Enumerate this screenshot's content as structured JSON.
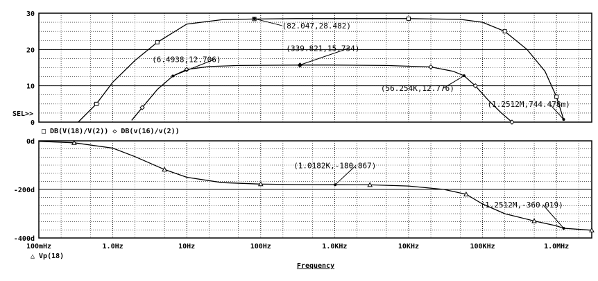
{
  "chart_data": [
    {
      "type": "line",
      "x_scale": "log",
      "xlim": [
        0.1,
        3000000
      ],
      "ylim": [
        0,
        30
      ],
      "y_ticks": [
        0,
        10,
        20,
        30
      ],
      "y_tick_labels": [
        "0",
        "10",
        "20",
        "30"
      ],
      "cursor_label": "SEL>>",
      "legend_text": "□ DB(V(18)/V(2))  ◇ DB(v(16)/v(2))",
      "series": [
        {
          "name": "DB(V(18)/V(2))",
          "marker": "square",
          "x": [
            0.34,
            0.6,
            1.0,
            2.0,
            4.0,
            10,
            30,
            82,
            300,
            1000,
            10000,
            50000,
            100000,
            200000,
            400000,
            700000,
            1000000,
            1250000
          ],
          "y": [
            0,
            5,
            11,
            17,
            22,
            27,
            28.2,
            28.4,
            28.5,
            28.5,
            28.5,
            28.3,
            27.5,
            25,
            20,
            14,
            7,
            0.7
          ]
        },
        {
          "name": "DB(v(16)/v(2))",
          "marker": "diamond",
          "x": [
            1.8,
            2.5,
            4.0,
            6.5,
            10,
            20,
            50,
            340,
            1000,
            5000,
            20000,
            40000,
            56000,
            80000,
            120000,
            180000,
            250000
          ],
          "y": [
            0.5,
            4,
            9,
            12.7,
            14.5,
            15.3,
            15.6,
            15.7,
            15.7,
            15.6,
            15.2,
            14,
            12.8,
            10,
            6,
            2.5,
            0
          ]
        }
      ],
      "annotations": [
        {
          "text": "(82.047,28.482)",
          "x": 82.047,
          "y": 28.482
        },
        {
          "text": "(1.2512M,744.478m)",
          "x": 1251200,
          "y": 0.744
        },
        {
          "text": "(6.4938,12.706)",
          "x": 6.4938,
          "y": 12.706
        },
        {
          "text": "(339.821,15.734)",
          "x": 339.821,
          "y": 15.734
        },
        {
          "text": "(56.254K,12.776)",
          "x": 56254,
          "y": 12.776
        }
      ]
    },
    {
      "type": "line",
      "x_scale": "log",
      "xlim": [
        0.1,
        3000000
      ],
      "ylim": [
        -400,
        0
      ],
      "y_ticks": [
        0,
        -200,
        -400
      ],
      "y_tick_labels": [
        "0d",
        "-200d",
        "-400d"
      ],
      "x_ticks": [
        0.1,
        1,
        10,
        100,
        1000,
        10000,
        100000,
        1000000
      ],
      "x_tick_labels": [
        "100mHz",
        "1.0Hz",
        "10Hz",
        "100Hz",
        "1.0KHz",
        "10KHz",
        "100KHz",
        "1.0MHz"
      ],
      "xlabel": "Frequency",
      "legend_text": "△ Vp(18)",
      "series": [
        {
          "name": "Vp(18)",
          "marker": "triangle",
          "x": [
            0.1,
            0.3,
            1,
            2,
            5,
            10,
            30,
            100,
            300,
            1018,
            3000,
            10000,
            30000,
            60000,
            100000,
            200000,
            500000,
            1000000,
            1251200,
            3000000
          ],
          "y": [
            -2,
            -8,
            -30,
            -65,
            -118,
            -150,
            -172,
            -178,
            -180,
            -180.9,
            -181,
            -186,
            -200,
            -220,
            -260,
            -300,
            -330,
            -350,
            -360,
            -368
          ]
        }
      ],
      "annotations": [
        {
          "text": "(1.0182K,-180.867)",
          "x": 1018.2,
          "y": -180.867
        },
        {
          "text": "(1.2512M,-360.019)",
          "x": 1251200,
          "y": -360.019
        }
      ]
    }
  ]
}
